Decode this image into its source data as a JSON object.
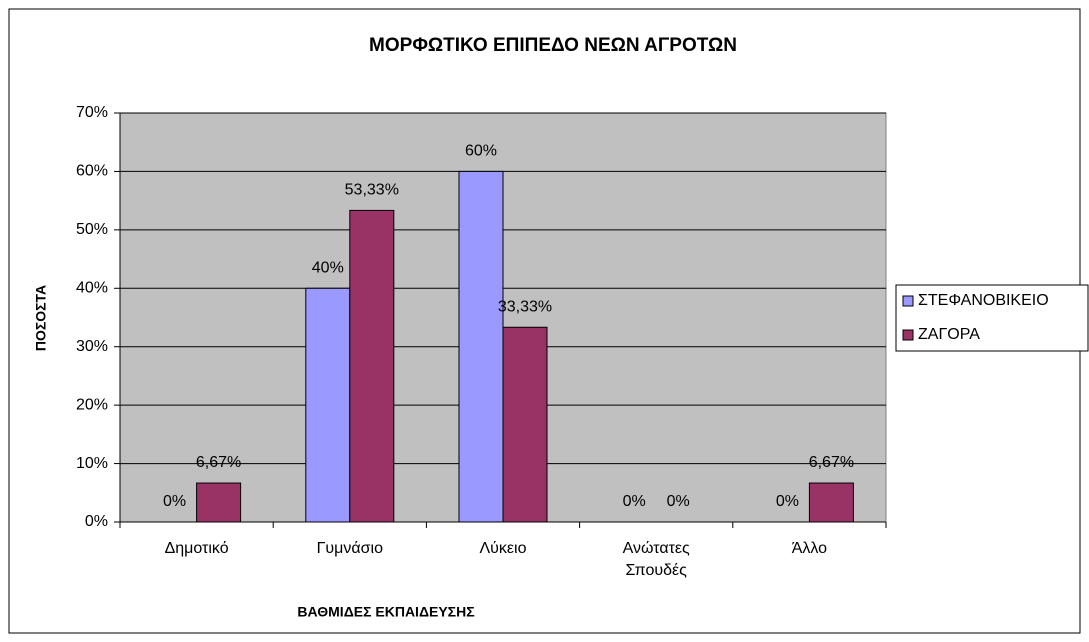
{
  "chart_data": {
    "type": "bar",
    "title": "ΜΟΡΦΩΤΙΚΟ ΕΠΙΠΕΔΟ ΝΕΩΝ ΑΓΡΟΤΩΝ",
    "x_label": "ΒΑΘΜΙΔΕΣ ΕΚΠΑΙΔΕΥΣΗΣ",
    "y_label": "ΠΟΣΟΣΤΑ",
    "categories": [
      "Δημοτικό",
      "Γυμνάσιο",
      "Λύκειο",
      "Ανώτατες Σπουδές",
      "Άλλο"
    ],
    "series": [
      {
        "name": "ΣΤΕΦΑΝΟΒΙΚΕΙΟ",
        "color": "#9999ff",
        "values": [
          0,
          40,
          60,
          0,
          0
        ],
        "value_labels": [
          "0%",
          "40%",
          "60%",
          "0%",
          "0%"
        ]
      },
      {
        "name": "ΖΑΓΟΡΑ",
        "color": "#993366",
        "values": [
          6.67,
          53.33,
          33.33,
          0,
          6.67
        ],
        "value_labels": [
          "6,67%",
          "53,33%",
          "33,33%",
          "0%",
          "6,67%"
        ]
      }
    ],
    "ylim": [
      0,
      70
    ],
    "yticks": [
      {
        "value": 0,
        "label": "0%"
      },
      {
        "value": 10,
        "label": "10%"
      },
      {
        "value": 20,
        "label": "20%"
      },
      {
        "value": 30,
        "label": "30%"
      },
      {
        "value": 40,
        "label": "40%"
      },
      {
        "value": 50,
        "label": "50%"
      },
      {
        "value": 60,
        "label": "60%"
      },
      {
        "value": 70,
        "label": "70%"
      }
    ],
    "grid": true,
    "legend": "right",
    "plot_background": "#c0c0c0"
  }
}
